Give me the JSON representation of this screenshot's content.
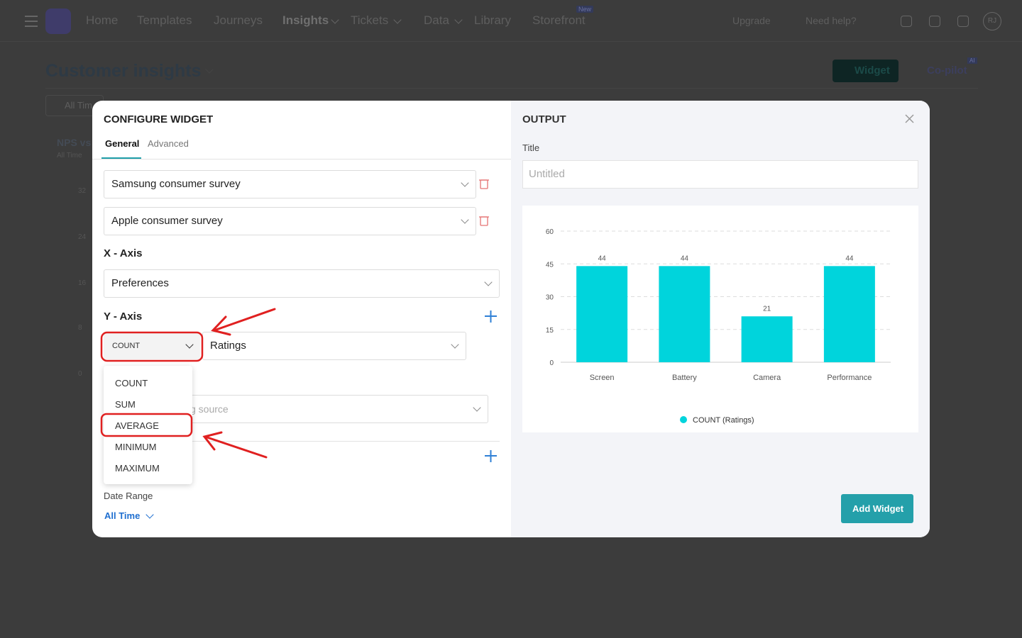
{
  "nav": {
    "items": [
      "Home",
      "Templates",
      "Journeys",
      "Insights",
      "Tickets",
      "Data",
      "Library",
      "Storefront"
    ],
    "badge": "New",
    "upgrade": "Upgrade",
    "help": "Need help?",
    "avatar": "RJ"
  },
  "page": {
    "title": "Customer insights",
    "widget_button": "Widget",
    "copilot": "Co-pilot",
    "copilot_badge": "AI",
    "filter": "All Tim",
    "card_title": "NPS vs",
    "card_subtitle": "All Time",
    "axis_ticks": [
      "32",
      "24",
      "16",
      "8",
      "0"
    ]
  },
  "modal": {
    "title": "CONFIGURE WIDGET",
    "tabs": [
      "General",
      "Advanced"
    ],
    "sources": [
      "Samsung consumer survey",
      "Apple consumer survey"
    ],
    "x_axis_label": "X - Axis",
    "x_axis_value": "Preferences",
    "y_axis_label": "Y - Axis",
    "aggregate": "COUNT",
    "y_field": "Ratings",
    "aggregate_options": [
      "COUNT",
      "SUM",
      "AVERAGE",
      "MINIMUM",
      "MAXIMUM"
    ],
    "hidden_placeholder": "g source",
    "date_range_label": "Date Range",
    "date_range_value": "All Time"
  },
  "output": {
    "title": "OUTPUT",
    "title_label": "Title",
    "title_placeholder": "Untitled",
    "add_button": "Add Widget",
    "chart": {
      "type": "bar",
      "categories": [
        "Screen",
        "Battery",
        "Camera",
        "Performance"
      ],
      "values": [
        44,
        44,
        21,
        44
      ],
      "color": "#00d4dc",
      "ylim": [
        0,
        60
      ],
      "yticks": [
        0,
        15,
        30,
        45,
        60
      ],
      "grid": true,
      "legend": "COUNT (Ratings)"
    }
  }
}
